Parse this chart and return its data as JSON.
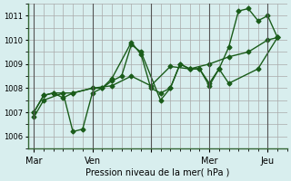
{
  "background_color": "#d8eeee",
  "grid_color": "#aaaaaa",
  "line_color": "#1a5c1a",
  "xlabel": "Pression niveau de la mer( hPa )",
  "ylim": [
    1005.5,
    1011.5
  ],
  "yticks": [
    1006,
    1007,
    1008,
    1009,
    1010,
    1011
  ],
  "day_ticks": [
    0,
    3,
    6,
    9,
    12
  ],
  "day_labels": [
    "Mar",
    "Ven",
    "",
    "Mer",
    "Jeu"
  ],
  "day_vlines": [
    0,
    3,
    6,
    9,
    12
  ],
  "series1_x": [
    0,
    0.5,
    1.5,
    2.0,
    2.5,
    3.0,
    3.5,
    4.0,
    4.5,
    5.0,
    5.5,
    6.5,
    7.0,
    7.5,
    8.0,
    8.5,
    9.0,
    9.5,
    10.0,
    10.5,
    11.0,
    11.5,
    12.0,
    12.5
  ],
  "series1_y": [
    1006.8,
    1007.5,
    1007.8,
    1006.2,
    1006.3,
    1007.8,
    1008.0,
    1008.3,
    1008.5,
    1009.8,
    1009.5,
    1007.5,
    1008.0,
    1009.0,
    1008.8,
    1008.8,
    1008.1,
    1008.8,
    1009.7,
    1011.2,
    1011.3,
    1010.8,
    1011.0,
    1010.1
  ],
  "series2_x": [
    0,
    0.5,
    1.0,
    1.5,
    2.0,
    3.0,
    3.5,
    4.0,
    5.0,
    5.5,
    6.0,
    6.5,
    7.0,
    7.5,
    8.0,
    8.5,
    9.0,
    9.5,
    10.0,
    11.5,
    12.5
  ],
  "series2_y": [
    1007.0,
    1007.7,
    1007.8,
    1007.6,
    1007.8,
    1008.0,
    1008.0,
    1008.4,
    1009.9,
    1009.4,
    1008.0,
    1007.8,
    1008.0,
    1009.0,
    1008.8,
    1008.8,
    1008.2,
    1008.8,
    1008.2,
    1008.8,
    1010.1
  ],
  "series3_x": [
    0,
    0.5,
    1.0,
    2.0,
    3.0,
    4.0,
    5.0,
    6.0,
    7.0,
    8.0,
    9.0,
    10.0,
    11.0,
    12.0,
    12.5
  ],
  "series3_y": [
    1007.0,
    1007.7,
    1007.8,
    1007.8,
    1008.0,
    1008.1,
    1008.5,
    1008.1,
    1008.9,
    1008.8,
    1009.0,
    1009.3,
    1009.5,
    1010.0,
    1010.1
  ]
}
